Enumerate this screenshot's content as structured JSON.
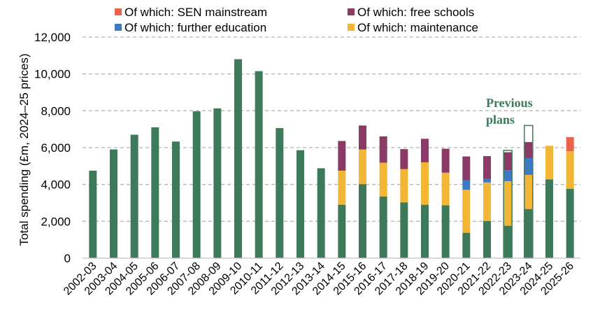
{
  "chart_data": {
    "type": "bar",
    "stacked": true,
    "title": "",
    "xlabel": "",
    "ylabel": "Total spending (£m, 2024–25  prices)",
    "ylim": [
      0,
      12000
    ],
    "yticks": [
      0,
      2000,
      4000,
      6000,
      8000,
      10000,
      12000
    ],
    "ytick_labels": [
      "0",
      "2,000",
      "4,000",
      "6,000",
      "8,000",
      "10,000",
      "12,000"
    ],
    "grid": true,
    "legend_position": "top",
    "categories": [
      "2002-03",
      "2003-04",
      "2004-05",
      "2005-06",
      "2006-07",
      "2007-08",
      "2008-09",
      "2009-10",
      "2010-11",
      "2011-12",
      "2012-13",
      "2013-14",
      "2014-15",
      "2015-16",
      "2016-17",
      "2017-18",
      "2018-19",
      "2019-20",
      "2020-21",
      "2021-22",
      "2022-23",
      "2023-24",
      "2024-25",
      "2025-26"
    ],
    "series": [
      {
        "name": "Total",
        "legend": false,
        "color": "#3d7a5a",
        "values": [
          4750,
          5900,
          6700,
          7100,
          6330,
          7970,
          8130,
          10800,
          10150,
          7060,
          5860,
          4880,
          2900,
          4020,
          3350,
          3030,
          2900,
          2870,
          1380,
          2020,
          1760,
          2670,
          4280,
          3770
        ]
      },
      {
        "name": "Of which: maintenance",
        "legend": true,
        "color": "#f2b535",
        "values": [
          0,
          0,
          0,
          0,
          0,
          0,
          0,
          0,
          0,
          0,
          0,
          0,
          1850,
          1880,
          1830,
          1800,
          2300,
          1770,
          2330,
          2090,
          2420,
          1850,
          1820,
          2030
        ]
      },
      {
        "name": "Of which: further education",
        "legend": true,
        "color": "#3d7ac4",
        "values": [
          0,
          0,
          0,
          0,
          0,
          0,
          0,
          0,
          0,
          0,
          0,
          0,
          0,
          0,
          0,
          0,
          0,
          0,
          510,
          200,
          600,
          910,
          0,
          0
        ]
      },
      {
        "name": "Of which: free schools",
        "legend": true,
        "color": "#8a3a64",
        "values": [
          0,
          0,
          0,
          0,
          0,
          0,
          0,
          0,
          0,
          0,
          0,
          0,
          1610,
          1300,
          1430,
          1090,
          1280,
          1300,
          1300,
          1230,
          970,
          870,
          0,
          0
        ]
      },
      {
        "name": "Of which: SEN mainstream",
        "legend": true,
        "color": "#e8624c",
        "values": [
          0,
          0,
          0,
          0,
          0,
          0,
          0,
          0,
          0,
          0,
          0,
          0,
          0,
          0,
          0,
          0,
          0,
          0,
          0,
          0,
          0,
          0,
          0,
          770
        ]
      }
    ],
    "previous_plans": {
      "label": "Previous plans",
      "line1": "Previous",
      "line2": "plans",
      "values": [
        null,
        null,
        null,
        null,
        null,
        null,
        null,
        null,
        null,
        null,
        null,
        null,
        null,
        null,
        null,
        null,
        null,
        null,
        null,
        null,
        5850,
        7200,
        null,
        null
      ]
    },
    "legend_entries": [
      {
        "label": "Of which: SEN mainstream",
        "color": "#e8624c"
      },
      {
        "label": "Of which: free schools",
        "color": "#8a3a64"
      },
      {
        "label": "Of which: further education",
        "color": "#3d7ac4"
      },
      {
        "label": "Of which: maintenance",
        "color": "#f2b535"
      }
    ]
  }
}
